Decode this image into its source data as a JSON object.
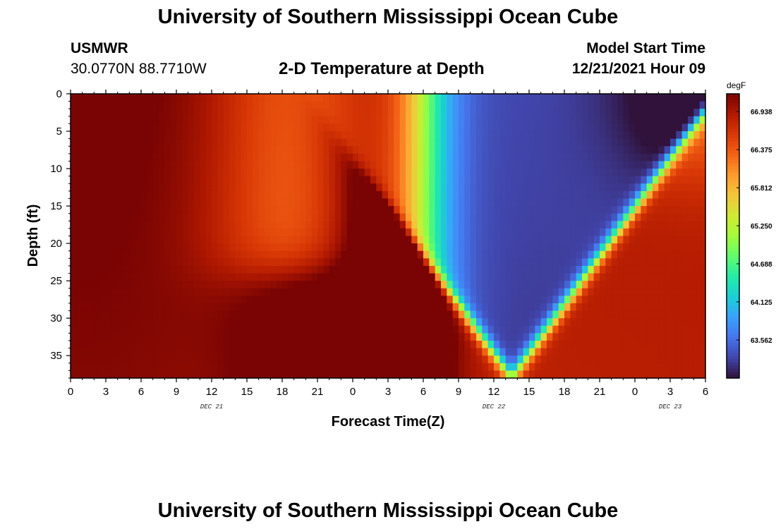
{
  "header": {
    "title": "University of Southern Mississippi Ocean Cube",
    "station": "USMWR",
    "coords": "30.0770N  88.7710W",
    "subtitle": "2-D Temperature at Depth",
    "model_label": "Model Start Time",
    "model_time": "12/21/2021 Hour 09",
    "footer_title": "University of Southern Mississippi Ocean Cube"
  },
  "chart_data": {
    "type": "heatmap",
    "xlabel": "Forecast Time(Z)",
    "ylabel": "Depth (ft)",
    "x_ticks": [
      "0",
      "3",
      "6",
      "9",
      "12",
      "15",
      "18",
      "21",
      "0",
      "3",
      "6",
      "9",
      "12",
      "15",
      "18",
      "21",
      "0",
      "3",
      "6"
    ],
    "y_ticks": [
      "0",
      "5",
      "10",
      "15",
      "20",
      "25",
      "30",
      "35"
    ],
    "x_range_hours": [
      0,
      54
    ],
    "y_range_ft": [
      0,
      38
    ],
    "date_labels": [
      {
        "text": "DEC 21",
        "hour": 12
      },
      {
        "text": "DEC 22",
        "hour": 36
      },
      {
        "text": "DEC 23",
        "hour": 51
      }
    ],
    "colorbar": {
      "unit": "degF",
      "ticks": [
        "66.938",
        "66.375",
        "65.812",
        "65.250",
        "64.688",
        "64.125",
        "63.562"
      ],
      "tick_values": [
        66.938,
        66.375,
        65.812,
        65.25,
        64.688,
        64.125,
        63.562
      ],
      "range": [
        62.999,
        67.2
      ],
      "colors": [
        "#30123b",
        "#4145ab",
        "#4675ed",
        "#39a2fc",
        "#1bcfd4",
        "#24eca6",
        "#61fc6c",
        "#a4fc3b",
        "#d1e834",
        "#f3c63a",
        "#fe9b2d",
        "#f36315",
        "#d93806",
        "#b11901",
        "#7a0403"
      ]
    },
    "grid": false
  }
}
